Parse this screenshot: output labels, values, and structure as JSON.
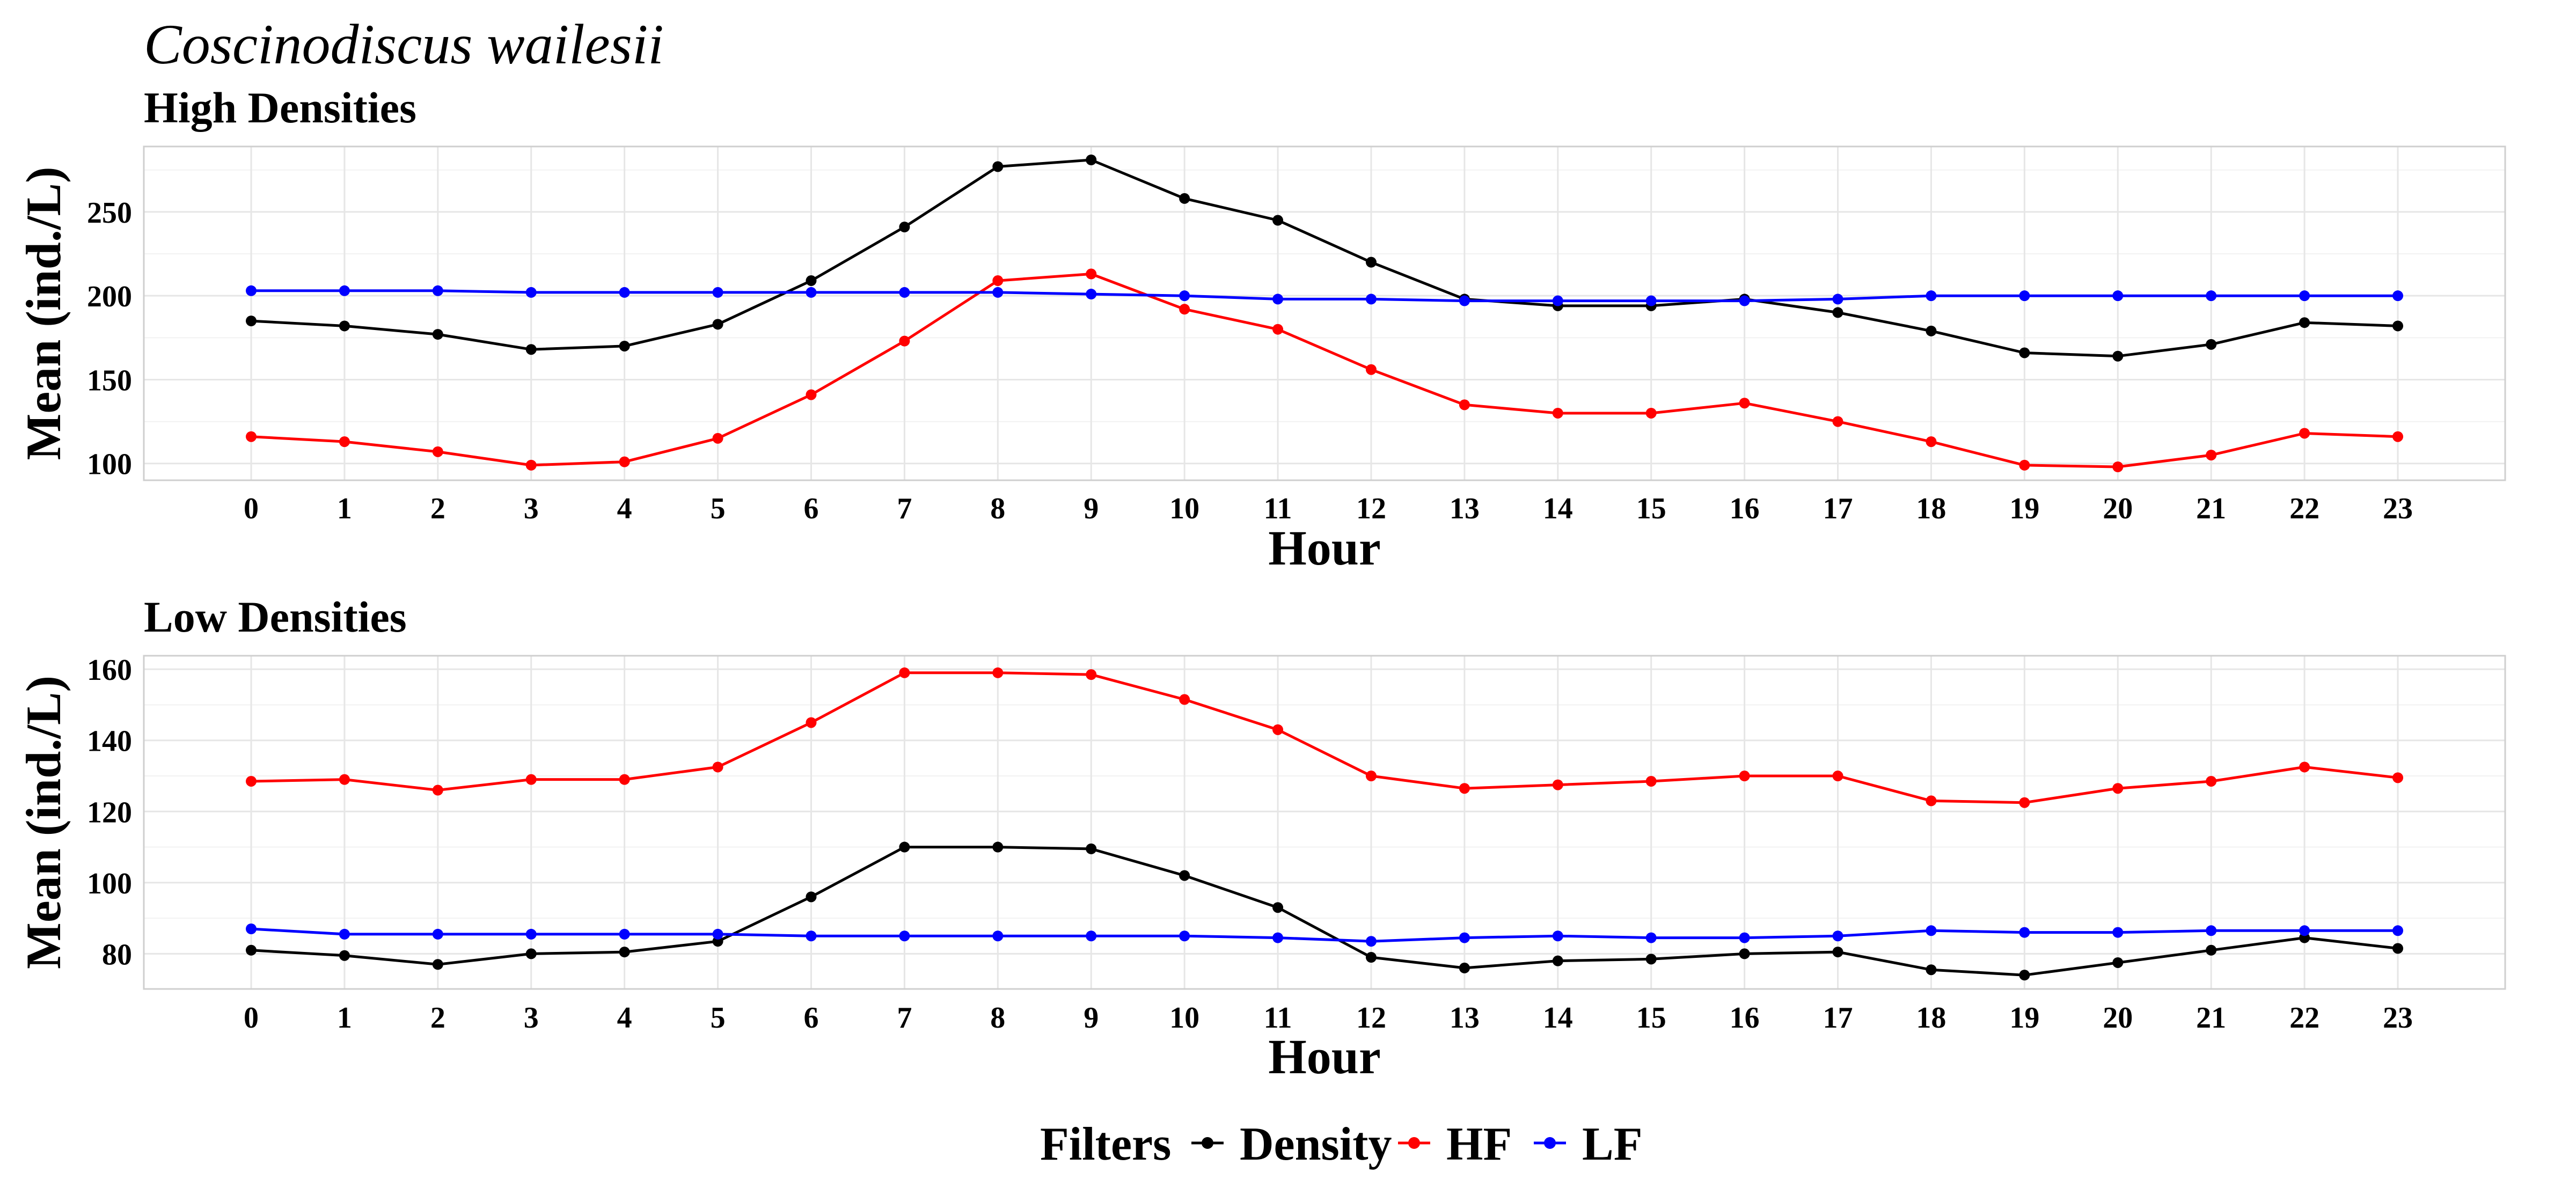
{
  "figure": {
    "title": "Coscinodiscus wailesii"
  },
  "legend": {
    "title": "Filters",
    "entries": [
      {
        "name": "Density",
        "color": "#000000"
      },
      {
        "name": "HF",
        "color": "#ff0000"
      },
      {
        "name": "LF",
        "color": "#0000ff"
      }
    ]
  },
  "chart_data": [
    {
      "type": "line",
      "title": "High Densities",
      "xlabel": "Hour",
      "ylabel": "Mean (ind./L)",
      "x": [
        0,
        1,
        2,
        3,
        4,
        5,
        6,
        7,
        8,
        9,
        10,
        11,
        12,
        13,
        14,
        15,
        16,
        17,
        18,
        19,
        20,
        21,
        22,
        23
      ],
      "xlim": [
        -1.15,
        24.15
      ],
      "ylim": [
        90,
        289
      ],
      "yticks": [
        100,
        150,
        200,
        250
      ],
      "grid": true,
      "series": [
        {
          "name": "Density",
          "color": "#000000",
          "values": [
            185,
            182,
            177,
            168,
            170,
            183,
            209,
            241,
            277,
            281,
            258,
            245,
            220,
            198,
            194,
            194,
            198,
            190,
            179,
            166,
            164,
            171,
            184,
            182
          ]
        },
        {
          "name": "HF",
          "color": "#ff0000",
          "values": [
            116,
            113,
            107,
            99,
            101,
            115,
            141,
            173,
            209,
            213,
            192,
            180,
            156,
            135,
            130,
            130,
            136,
            125,
            113,
            99,
            98,
            105,
            118,
            116
          ]
        },
        {
          "name": "LF",
          "color": "#0000ff",
          "values": [
            203,
            203,
            203,
            202,
            202,
            202,
            202,
            202,
            202,
            201,
            200,
            198,
            198,
            197,
            197,
            197,
            197,
            198,
            200,
            200,
            200,
            200,
            200,
            200
          ]
        }
      ]
    },
    {
      "type": "line",
      "title": "Low Densities",
      "xlabel": "Hour",
      "ylabel": "Mean (ind./L)",
      "x": [
        0,
        1,
        2,
        3,
        4,
        5,
        6,
        7,
        8,
        9,
        10,
        11,
        12,
        13,
        14,
        15,
        16,
        17,
        18,
        19,
        20,
        21,
        22,
        23
      ],
      "xlim": [
        -1.15,
        24.15
      ],
      "ylim": [
        70.1,
        163.8
      ],
      "yticks": [
        80,
        100,
        120,
        140,
        160
      ],
      "grid": true,
      "series": [
        {
          "name": "Density",
          "color": "#000000",
          "values": [
            81,
            79.5,
            77,
            80,
            80.5,
            83.5,
            96,
            110,
            110,
            109.5,
            102,
            93,
            79,
            76,
            78,
            78.5,
            80,
            80.5,
            75.5,
            74,
            77.5,
            81,
            84.5,
            81.5
          ]
        },
        {
          "name": "HF",
          "color": "#ff0000",
          "values": [
            128.5,
            129,
            126,
            129,
            129,
            132.5,
            145,
            159,
            159,
            158.5,
            151.5,
            143,
            130,
            126.5,
            127.5,
            128.5,
            130,
            130,
            123,
            122.5,
            126.5,
            128.5,
            132.5,
            129.5
          ]
        },
        {
          "name": "LF",
          "color": "#0000ff",
          "values": [
            87,
            85.5,
            85.5,
            85.5,
            85.5,
            85.5,
            85,
            85,
            85,
            85,
            85,
            84.5,
            83.5,
            84.5,
            85,
            84.5,
            84.5,
            85,
            86.5,
            86,
            86,
            86.5,
            86.5,
            86.5
          ]
        }
      ]
    }
  ]
}
